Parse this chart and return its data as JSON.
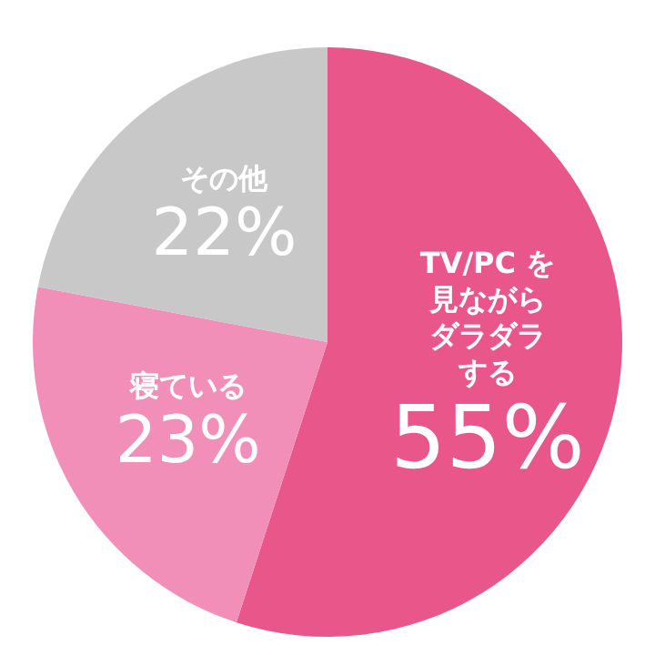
{
  "chart_data": {
    "type": "pie",
    "categories": [
      "TV/PC を見ながらダラダラする",
      "寝ている",
      "その他"
    ],
    "values": [
      55,
      23,
      22
    ],
    "value_labels": [
      "55%",
      "23%",
      "22%"
    ],
    "colors": [
      "#e9568a",
      "#f28fb8",
      "#c8c8c8"
    ]
  }
}
